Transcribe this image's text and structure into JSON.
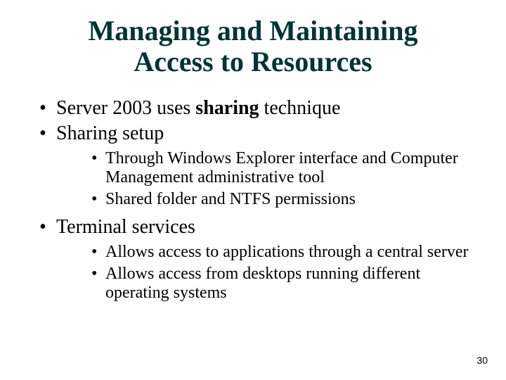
{
  "title": {
    "line1": "Managing and Maintaining",
    "line2": "Access to Resources",
    "color": "#003333",
    "fontsize": 40
  },
  "body": {
    "fontsize_level1": 28,
    "fontsize_level2": 24,
    "color": "#000000",
    "items": [
      {
        "text_before_bold": "Server 2003 uses ",
        "bold_text": "sharing",
        "text_after_bold": " technique",
        "children": []
      },
      {
        "text": "Sharing setup",
        "children": [
          {
            "text": "Through Windows Explorer interface and Computer Management administrative tool"
          },
          {
            "text": "Shared folder and NTFS permissions"
          }
        ]
      },
      {
        "text": "Terminal services",
        "children": [
          {
            "text": "Allows access to applications through a central server"
          },
          {
            "text": "Allows access from desktops running different operating systems"
          }
        ]
      }
    ]
  },
  "pagenum": {
    "text": "30",
    "fontsize": 14,
    "color": "#000000"
  }
}
